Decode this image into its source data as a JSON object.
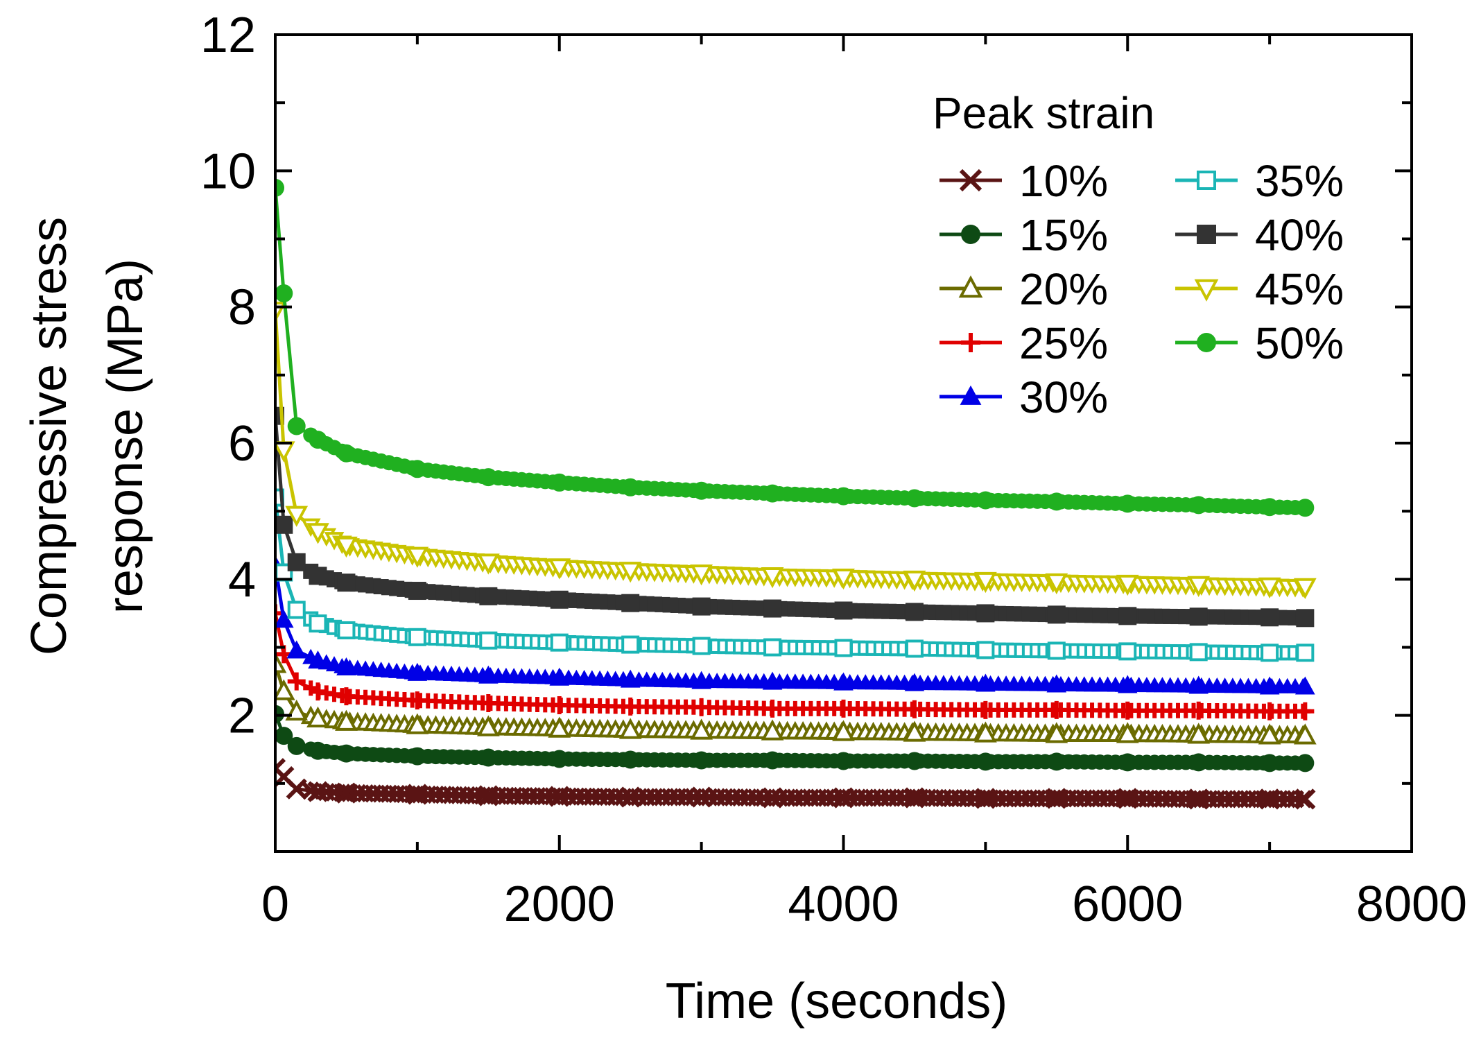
{
  "chart_data": {
    "type": "line",
    "xlabel": "Time (seconds)",
    "ylabel_lines": [
      "Compressive stress",
      "response (MPa)"
    ],
    "xlim": [
      0,
      8000
    ],
    "ylim": [
      0,
      12
    ],
    "x_ticks": [
      0,
      2000,
      4000,
      6000,
      8000
    ],
    "y_ticks": [
      2,
      4,
      6,
      8,
      10,
      12
    ],
    "x_tick_labels": [
      "0",
      "2000",
      "4000",
      "6000",
      "8000"
    ],
    "y_tick_labels": [
      "2",
      "4",
      "6",
      "8",
      "10",
      "12"
    ],
    "grid": false,
    "legend": {
      "title": "Peak strain",
      "placement": "top-right",
      "columns": 2
    },
    "time_points": [
      0,
      60,
      150,
      300,
      500,
      1000,
      1500,
      2000,
      2500,
      3000,
      3500,
      4000,
      4500,
      5000,
      5500,
      6000,
      6500,
      7000,
      7250
    ],
    "series": [
      {
        "name": "10%",
        "marker": "x",
        "color": "#5a1414",
        "values": [
          1.22,
          1.1,
          0.92,
          0.88,
          0.86,
          0.84,
          0.82,
          0.81,
          0.8,
          0.8,
          0.79,
          0.79,
          0.79,
          0.78,
          0.78,
          0.78,
          0.77,
          0.77,
          0.77
        ]
      },
      {
        "name": "15%",
        "marker": "circle",
        "color": "#0e4a14",
        "values": [
          2.02,
          1.7,
          1.55,
          1.48,
          1.44,
          1.4,
          1.38,
          1.36,
          1.35,
          1.34,
          1.34,
          1.33,
          1.33,
          1.32,
          1.32,
          1.31,
          1.31,
          1.3,
          1.3
        ]
      },
      {
        "name": "20%",
        "marker": "triangle-up-open",
        "color": "#6b6b00",
        "values": [
          2.75,
          2.35,
          2.05,
          1.95,
          1.9,
          1.85,
          1.82,
          1.8,
          1.78,
          1.77,
          1.76,
          1.75,
          1.74,
          1.73,
          1.72,
          1.72,
          1.71,
          1.7,
          1.7
        ]
      },
      {
        "name": "25%",
        "marker": "plus",
        "color": "#e00000",
        "values": [
          3.5,
          2.9,
          2.5,
          2.35,
          2.28,
          2.22,
          2.18,
          2.15,
          2.13,
          2.12,
          2.1,
          2.1,
          2.09,
          2.08,
          2.08,
          2.07,
          2.07,
          2.06,
          2.06
        ]
      },
      {
        "name": "30%",
        "marker": "triangle-up",
        "color": "#0000e6",
        "values": [
          4.2,
          3.4,
          2.95,
          2.8,
          2.7,
          2.62,
          2.58,
          2.55,
          2.52,
          2.5,
          2.49,
          2.48,
          2.47,
          2.46,
          2.45,
          2.44,
          2.43,
          2.42,
          2.42
        ]
      },
      {
        "name": "35%",
        "marker": "square-open",
        "color": "#1ab5b5",
        "values": [
          5.2,
          4.1,
          3.55,
          3.35,
          3.25,
          3.15,
          3.1,
          3.07,
          3.04,
          3.02,
          3.0,
          2.99,
          2.98,
          2.96,
          2.95,
          2.94,
          2.93,
          2.92,
          2.92
        ]
      },
      {
        "name": "40%",
        "marker": "square",
        "color": "#333333",
        "values": [
          6.4,
          4.8,
          4.25,
          4.05,
          3.95,
          3.83,
          3.75,
          3.7,
          3.65,
          3.6,
          3.57,
          3.54,
          3.52,
          3.5,
          3.48,
          3.46,
          3.45,
          3.44,
          3.43
        ]
      },
      {
        "name": "45%",
        "marker": "triangle-down-open",
        "color": "#c9c400",
        "values": [
          7.95,
          5.9,
          4.95,
          4.7,
          4.5,
          4.35,
          4.25,
          4.18,
          4.13,
          4.09,
          4.05,
          4.03,
          4.0,
          3.98,
          3.96,
          3.94,
          3.92,
          3.9,
          3.89
        ]
      },
      {
        "name": "50%",
        "marker": "circle",
        "color": "#20b020",
        "values": [
          9.75,
          8.2,
          6.25,
          6.05,
          5.85,
          5.62,
          5.5,
          5.42,
          5.35,
          5.3,
          5.26,
          5.22,
          5.19,
          5.16,
          5.14,
          5.11,
          5.09,
          5.06,
          5.05
        ]
      }
    ]
  }
}
